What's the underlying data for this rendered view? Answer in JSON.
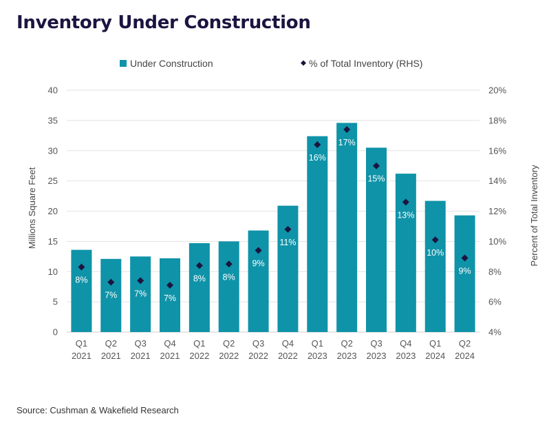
{
  "title": "Inventory Under Construction",
  "source": "Source: Cushman & Wakefield Research",
  "colors": {
    "bar": "#0f93a8",
    "marker": "#1c1440",
    "title": "#1c1440",
    "grid": "#e2e2e2"
  },
  "chart_data": {
    "type": "bar",
    "categories": [
      [
        "Q1",
        "2021"
      ],
      [
        "Q2",
        "2021"
      ],
      [
        "Q3",
        "2021"
      ],
      [
        "Q4",
        "2021"
      ],
      [
        "Q1",
        "2022"
      ],
      [
        "Q2",
        "2022"
      ],
      [
        "Q3",
        "2022"
      ],
      [
        "Q4",
        "2022"
      ],
      [
        "Q1",
        "2023"
      ],
      [
        "Q2",
        "2023"
      ],
      [
        "Q3",
        "2023"
      ],
      [
        "Q4",
        "2023"
      ],
      [
        "Q1",
        "2024"
      ],
      [
        "Q2",
        "2024"
      ]
    ],
    "series": [
      {
        "name": "Under Construction",
        "type": "bar",
        "axis": "left",
        "values": [
          13.6,
          12.1,
          12.5,
          12.2,
          14.7,
          15.0,
          16.8,
          20.9,
          32.4,
          34.6,
          30.5,
          26.2,
          21.7,
          19.3
        ]
      },
      {
        "name": "% of Total Inventory (RHS)",
        "type": "scatter",
        "marker": "diamond",
        "axis": "right",
        "values": [
          8.3,
          7.3,
          7.4,
          7.1,
          8.4,
          8.5,
          9.4,
          10.8,
          16.4,
          17.4,
          15.0,
          12.6,
          10.1,
          8.9
        ],
        "labels": [
          "8%",
          "7%",
          "7%",
          "7%",
          "8%",
          "8%",
          "9%",
          "11%",
          "16%",
          "17%",
          "15%",
          "13%",
          "10%",
          "9%"
        ]
      }
    ],
    "ylabel": "Millions Square Feet",
    "y2label": "Percent of Total Inventory",
    "ylim": [
      0,
      40
    ],
    "y2lim": [
      4,
      20
    ],
    "yticks": [
      "0",
      "5",
      "10",
      "15",
      "20",
      "25",
      "30",
      "35",
      "40"
    ],
    "y2ticks": [
      "4%",
      "6%",
      "8%",
      "10%",
      "12%",
      "14%",
      "16%",
      "18%",
      "20%"
    ],
    "grid": true,
    "legend": "top-center"
  }
}
